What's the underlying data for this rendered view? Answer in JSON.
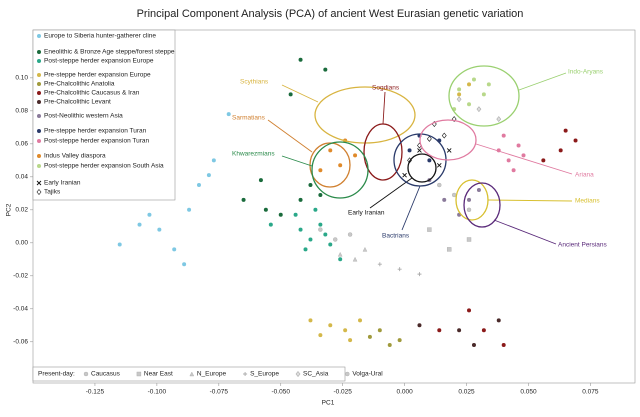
{
  "chart_data": {
    "type": "scatter",
    "title": "Principal Component Analysis (PCA) of ancient West Eurasian genetic variation",
    "x_label": "PC1",
    "y_label": "PC2",
    "xlim": [
      -0.15,
      0.093
    ],
    "ylim": [
      -0.085,
      0.129
    ],
    "xticks": [
      {
        "value": -0.125,
        "label": "-0.125"
      },
      {
        "value": -0.1,
        "label": "-0.100"
      },
      {
        "value": -0.075,
        "label": "-0.075"
      },
      {
        "value": -0.05,
        "label": "-0.050"
      },
      {
        "value": -0.025,
        "label": "-0.025"
      },
      {
        "value": 0,
        "label": "0.000"
      },
      {
        "value": 0.025,
        "label": "0.025"
      },
      {
        "value": 0.05,
        "label": "0.050"
      },
      {
        "value": 0.075,
        "label": "0.075"
      }
    ],
    "yticks": [
      {
        "value": 0.1,
        "label": "0.10"
      },
      {
        "value": 0.08,
        "label": "0.08"
      },
      {
        "value": 0.06,
        "label": "0.06"
      },
      {
        "value": 0.04,
        "label": "0.04"
      },
      {
        "value": 0.02,
        "label": "0.02"
      },
      {
        "value": 0,
        "label": "0.00"
      },
      {
        "value": -0.02,
        "label": "-0.02"
      },
      {
        "value": -0.04,
        "label": "-0.04"
      },
      {
        "value": -0.06,
        "label": "-0.06"
      }
    ],
    "series": [
      {
        "name": "Europe to Siberia hunter-gatherer cline",
        "color": "#7ec8e3",
        "marker": "circle",
        "x": [
          -0.115,
          -0.103,
          -0.099,
          -0.093,
          -0.089,
          -0.083,
          -0.079,
          -0.077,
          -0.087,
          -0.107,
          -0.071
        ],
        "values": [
          -0.001,
          0.017,
          0.008,
          -0.004,
          -0.013,
          0.035,
          0.041,
          0.05,
          0.02,
          0.011,
          0.078
        ]
      },
      {
        "name": "Eneolithic & Bronze Age steppe/forest steppe",
        "color": "#1a6b3c",
        "marker": "circle",
        "x": [
          -0.065,
          -0.056,
          -0.05,
          -0.042,
          -0.038,
          -0.034,
          -0.032,
          -0.042,
          -0.046,
          -0.058
        ],
        "values": [
          0.026,
          0.02,
          0.017,
          0.026,
          0.035,
          0.029,
          0.105,
          0.111,
          0.09,
          0.038
        ]
      },
      {
        "name": "Post-steppe herder expansion Europe",
        "color": "#2aa889",
        "marker": "circle",
        "x": [
          -0.044,
          -0.042,
          -0.038,
          -0.034,
          -0.04,
          -0.03,
          -0.036,
          -0.026,
          -0.054,
          -0.032
        ],
        "values": [
          0.017,
          0.008,
          0.002,
          0.011,
          -0.004,
          -0.001,
          0.02,
          -0.01,
          0.011,
          0.005
        ]
      },
      {
        "name": "Pre-steppe herder expansion Europe",
        "color": "#d4b84a",
        "marker": "circle",
        "x": [
          -0.038,
          -0.03,
          -0.024,
          -0.018,
          -0.034,
          -0.022,
          0.022,
          0.026
        ],
        "values": [
          -0.047,
          -0.05,
          -0.053,
          -0.047,
          -0.056,
          -0.059,
          0.09,
          0.096
        ]
      },
      {
        "name": "Pre-Chalcolithic Anatolia",
        "color": "#a09a3c",
        "marker": "circle",
        "x": [
          -0.002,
          -0.01,
          -0.006,
          -0.014
        ],
        "values": [
          -0.059,
          -0.053,
          -0.062,
          -0.057
        ]
      },
      {
        "name": "Pre-Chalcolithic Caucasus & Iran",
        "color": "#8b1a1a",
        "marker": "circle",
        "x": [
          0.065,
          0.069,
          0.063,
          0.056,
          0.026,
          0.032,
          0.04,
          0.014
        ],
        "values": [
          0.068,
          0.062,
          0.056,
          0.05,
          -0.041,
          -0.053,
          -0.062,
          -0.053
        ]
      },
      {
        "name": "Pre-Chalcolithic Levant",
        "color": "#4a2a2a",
        "marker": "circle",
        "x": [
          0.022,
          0.028,
          0.038,
          0.006
        ],
        "values": [
          -0.053,
          -0.062,
          -0.047,
          -0.05
        ]
      },
      {
        "name": "Post-Neolithic western Asia",
        "color": "#8a7a9a",
        "marker": "circle",
        "x": [
          0.01,
          0.016,
          0.026,
          0.03,
          0.022
        ],
        "values": [
          0.038,
          0.026,
          0.026,
          0.032,
          0.017
        ]
      },
      {
        "name": "Pre-steppe herder expansion Turan",
        "color": "#2a3a6a",
        "marker": "circle",
        "x": [
          0.002,
          0.01,
          0.014,
          0.006
        ],
        "values": [
          0.056,
          0.05,
          0.062,
          0.065
        ]
      },
      {
        "name": "Post-steppe herder expansion Turan",
        "color": "#e07aa0",
        "marker": "circle",
        "x": [
          0.038,
          0.042,
          0.046,
          0.04,
          0.044,
          0.048
        ],
        "values": [
          0.056,
          0.05,
          0.059,
          0.065,
          0.044,
          0.053
        ]
      },
      {
        "name": "Indus Valley diaspora",
        "color": "#e08a2a",
        "marker": "circle",
        "x": [
          -0.03,
          -0.026,
          -0.034,
          -0.024,
          -0.02
        ],
        "values": [
          0.056,
          0.047,
          0.044,
          0.062,
          0.053
        ]
      },
      {
        "name": "Post-steppe herder expansion South Asia",
        "color": "#b8d88a",
        "marker": "circle",
        "x": [
          0.022,
          0.028,
          0.032,
          0.026,
          0.034,
          0.02
        ],
        "values": [
          0.093,
          0.099,
          0.09,
          0.084,
          0.096,
          0.081
        ]
      },
      {
        "name": "Early Iranian",
        "color": "#111111",
        "marker": "x",
        "x": [
          0.006,
          0.014,
          0.0,
          0.018
        ],
        "values": [
          0.056,
          0.047,
          0.041,
          0.056
        ]
      },
      {
        "name": "Tajiks",
        "color": "#111111",
        "marker": "diamond",
        "x": [
          0.006,
          0.012,
          0.016,
          0.02,
          0.01,
          0.002
        ],
        "values": [
          0.059,
          0.072,
          0.065,
          0.075,
          0.063,
          0.05
        ]
      },
      {
        "name": "Caucasus",
        "color": "#c8c8c8",
        "marker": "circle",
        "present_day": true,
        "x": [
          0.014,
          0.02,
          0.026
        ],
        "values": [
          0.035,
          0.029,
          0.02
        ]
      },
      {
        "name": "Near East",
        "color": "#c8c8c8",
        "marker": "square",
        "present_day": true,
        "x": [
          0.01,
          0.018,
          0.026
        ],
        "values": [
          0.008,
          -0.004,
          0.002
        ]
      },
      {
        "name": "N_Europe",
        "color": "#c8c8c8",
        "marker": "triangle",
        "present_day": true,
        "x": [
          -0.026,
          -0.02,
          -0.016
        ],
        "values": [
          -0.007,
          -0.01,
          -0.004
        ]
      },
      {
        "name": "S_Europe",
        "color": "#c8c8c8",
        "marker": "plus",
        "present_day": true,
        "x": [
          -0.01,
          -0.002,
          0.006
        ],
        "values": [
          -0.013,
          -0.016,
          -0.019
        ]
      },
      {
        "name": "SC_Asia",
        "color": "#c8c8c8",
        "marker": "diamond",
        "present_day": true,
        "x": [
          0.022,
          0.03,
          0.038
        ],
        "values": [
          0.087,
          0.081,
          0.075
        ]
      },
      {
        "name": "Volga-Ural",
        "color": "#c8c8c8",
        "marker": "circle",
        "present_day": true,
        "x": [
          -0.034,
          -0.028,
          -0.022
        ],
        "values": [
          0.008,
          0.002,
          0.005
        ]
      }
    ],
    "present_day_legend_title": "Present-day:",
    "annotations": [
      {
        "text": "Scythians",
        "color": "#d8b440"
      },
      {
        "text": "Sogdians",
        "color": "#8b1a1a"
      },
      {
        "text": "Sarmatians",
        "color": "#d08030"
      },
      {
        "text": "Khwarezmians",
        "color": "#2a8a4a"
      },
      {
        "text": "Early Iranian",
        "color": "#111111"
      },
      {
        "text": "Bactrians",
        "color": "#2a3a6a"
      },
      {
        "text": "Indo-Aryans",
        "color": "#9ad070"
      },
      {
        "text": "Ariana",
        "color": "#e07aa0"
      },
      {
        "text": "Medians",
        "color": "#d8c030"
      },
      {
        "text": "Ancient Persians",
        "color": "#5a2a7a"
      }
    ]
  }
}
